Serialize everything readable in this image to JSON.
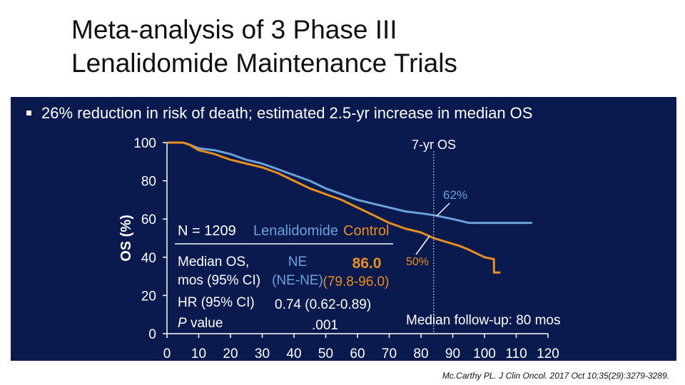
{
  "title_line1": "Meta-analysis of 3 Phase III",
  "title_line2": "Lenalidomide Maintenance Trials",
  "bullet": "26% reduction in risk of death; estimated 2.5-yr increase in median OS",
  "citation": "Mc.Carthy PL. J Clin Oncol. 2017 Oct 10;35(29):3279-3289.",
  "colors": {
    "panel": "#0b1a4e",
    "lenalidomide": "#6aa2dc",
    "control": "#e8901c",
    "text": "#ffffff"
  },
  "chart_data": {
    "type": "line",
    "title": "",
    "ylabel": "OS (%)",
    "xlabel": "",
    "xlim": [
      0,
      120
    ],
    "ylim": [
      0,
      100
    ],
    "xticks": [
      "0",
      "10",
      "20",
      "30",
      "40",
      "50",
      "60",
      "70",
      "80",
      "90",
      "100",
      "110",
      "120"
    ],
    "yticks": [
      "0",
      "20",
      "40",
      "60",
      "80",
      "100"
    ],
    "series": [
      {
        "name": "Lenalidomide",
        "color": "#6aa2dc",
        "x": [
          0,
          5,
          7,
          10,
          15,
          20,
          25,
          30,
          35,
          40,
          45,
          50,
          55,
          60,
          65,
          70,
          75,
          80,
          84,
          90,
          95,
          100,
          110,
          115
        ],
        "y": [
          100,
          100,
          99,
          97,
          96,
          94,
          91,
          89,
          86,
          83,
          80,
          76,
          73,
          70,
          68,
          66,
          64,
          63,
          62,
          60,
          58,
          58,
          58,
          58
        ]
      },
      {
        "name": "Control",
        "color": "#e8901c",
        "x": [
          0,
          5,
          7,
          10,
          15,
          20,
          25,
          30,
          35,
          40,
          45,
          50,
          55,
          60,
          65,
          70,
          75,
          80,
          84,
          88,
          92,
          95,
          100,
          103,
          103,
          105
        ],
        "y": [
          100,
          100,
          99,
          96,
          94,
          91,
          89,
          87,
          84,
          80,
          76,
          73,
          70,
          66,
          62,
          58,
          55,
          53,
          50,
          48,
          46,
          44,
          40,
          39,
          32,
          32
        ]
      }
    ],
    "annotations": {
      "landmark_label": "7-yr OS",
      "landmark_x": 84,
      "len_value": "62%",
      "ctrl_value": "50%",
      "n": "N = 1209",
      "header_len": "Lenalidomide",
      "header_ctrl": "Control",
      "median_label1": "Median OS,",
      "median_label2": "mos (95% CI)",
      "len_median": "NE",
      "len_ci": "(NE-NE)",
      "ctrl_median": "86.0",
      "ctrl_ci": "(79.8-96.0)",
      "hr_label": "HR (95% CI)",
      "hr_value": "0.74 (0.62-0.89)",
      "p_label": "P",
      "p_label_rest": " value",
      "p_value": ".001",
      "followup": "Median follow-up: 80 mos"
    }
  }
}
